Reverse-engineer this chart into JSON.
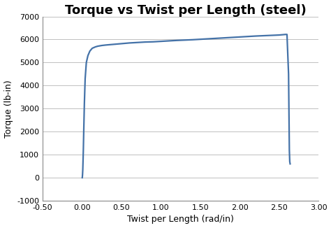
{
  "title": "Torque vs Twist per Length (steel)",
  "xlabel": "Twist per Length (rad/in)",
  "ylabel": "Torque (lb-in)",
  "xlim": [
    -0.5,
    3.0
  ],
  "ylim": [
    -1000,
    7000
  ],
  "xticks": [
    -0.5,
    0.0,
    0.5,
    1.0,
    1.5,
    2.0,
    2.5,
    3.0
  ],
  "yticks": [
    -1000,
    0,
    1000,
    2000,
    3000,
    4000,
    5000,
    6000,
    7000
  ],
  "line_color": "#4472A8",
  "line_width": 1.6,
  "bg_color": "#FFFFFF",
  "plot_bg_color": "#FFFFFF",
  "grid_color": "#C0C0C0",
  "curve_x": [
    0.003,
    0.005,
    0.007,
    0.01,
    0.013,
    0.017,
    0.022,
    0.03,
    0.04,
    0.055,
    0.075,
    0.1,
    0.13,
    0.17,
    0.2,
    0.25,
    0.3,
    0.4,
    0.5,
    0.6,
    0.7,
    0.8,
    0.9,
    1.0,
    1.1,
    1.2,
    1.3,
    1.4,
    1.5,
    1.6,
    1.7,
    1.8,
    1.9,
    2.0,
    2.1,
    2.2,
    2.3,
    2.4,
    2.5,
    2.55,
    2.58,
    2.6,
    2.62,
    2.63,
    2.635,
    2.64
  ],
  "curve_y": [
    0,
    50,
    150,
    350,
    700,
    1200,
    2000,
    3200,
    4300,
    5000,
    5300,
    5500,
    5620,
    5680,
    5710,
    5740,
    5760,
    5790,
    5820,
    5850,
    5870,
    5890,
    5900,
    5920,
    5940,
    5960,
    5975,
    5990,
    6010,
    6030,
    6050,
    6070,
    6090,
    6110,
    6130,
    6150,
    6165,
    6180,
    6195,
    6210,
    6220,
    6220,
    4500,
    1200,
    700,
    600
  ]
}
